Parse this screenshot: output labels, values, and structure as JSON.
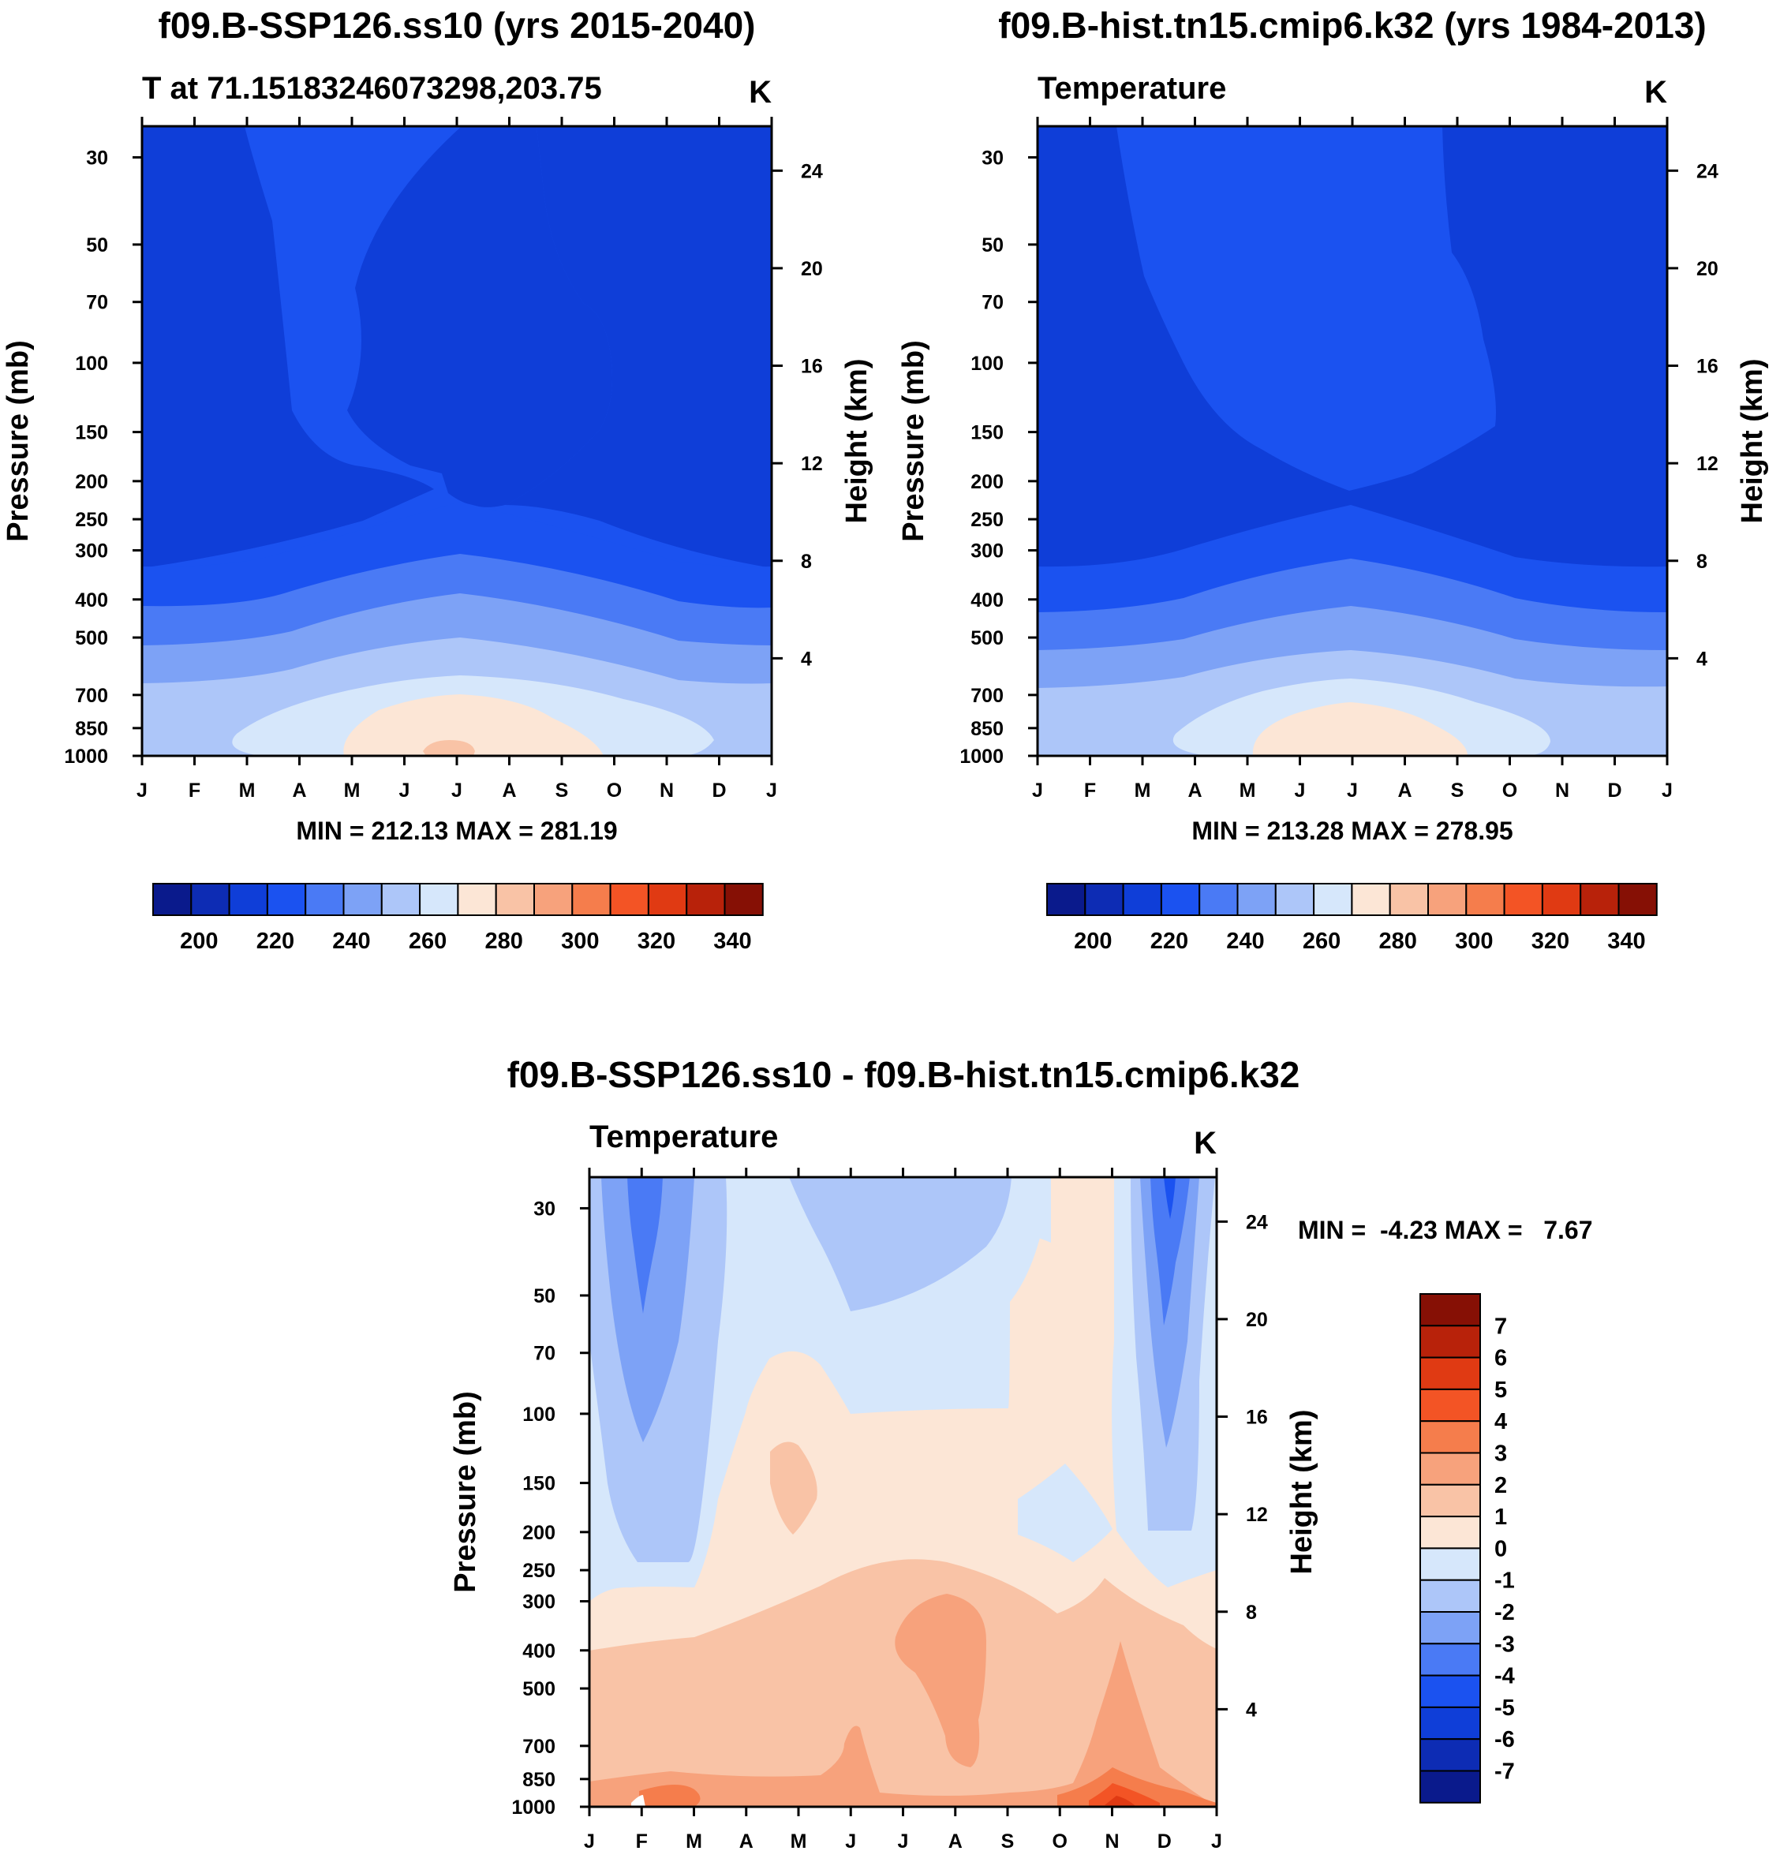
{
  "chart_data": [
    {
      "type": "contour",
      "title": "f09.B-SSP126.ss10 (yrs 2015-2040)",
      "subtitle_left": "T at 71.15183246073298,203.75",
      "units": "K",
      "ylabel": "Pressure (mb)",
      "ylabel_right": "Height (km)",
      "x_ticks": [
        "J",
        "F",
        "M",
        "A",
        "M",
        "J",
        "J",
        "A",
        "S",
        "O",
        "N",
        "D",
        "J"
      ],
      "pressure_ticks": [
        30,
        50,
        70,
        100,
        150,
        200,
        250,
        300,
        400,
        500,
        700,
        850,
        1000
      ],
      "height_ticks": [
        24,
        20,
        16,
        12,
        8,
        4
      ],
      "ylim": [
        1000,
        25
      ],
      "summary": "MIN = 212.13 MAX = 281.19",
      "min": 212.13,
      "max": 281.19,
      "colorbar": {
        "labels": [
          "200",
          "220",
          "240",
          "260",
          "280",
          "300",
          "320",
          "340"
        ],
        "levels": [
          190,
          200,
          210,
          220,
          230,
          240,
          250,
          260,
          270,
          280,
          290,
          300,
          310,
          320,
          330,
          340,
          350
        ],
        "colors": [
          "#0a1a8c",
          "#0d2cb4",
          "#0f3ed8",
          "#1b52f0",
          "#4a7af5",
          "#7da2f6",
          "#adc6f9",
          "#d6e7fb",
          "#fce6d6",
          "#f9c3a6",
          "#f7a27c",
          "#f57d4c",
          "#f35425",
          "#e03a13",
          "#b8220a",
          "#861005"
        ]
      }
    },
    {
      "type": "contour",
      "title": "f09.B-hist.tn15.cmip6.k32 (yrs 1984-2013)",
      "subtitle_left": "Temperature",
      "units": "K",
      "ylabel": "Pressure (mb)",
      "ylabel_right": "Height (km)",
      "x_ticks": [
        "J",
        "F",
        "M",
        "A",
        "M",
        "J",
        "J",
        "A",
        "S",
        "O",
        "N",
        "D",
        "J"
      ],
      "pressure_ticks": [
        30,
        50,
        70,
        100,
        150,
        200,
        250,
        300,
        400,
        500,
        700,
        850,
        1000
      ],
      "height_ticks": [
        24,
        20,
        16,
        12,
        8,
        4
      ],
      "ylim": [
        1000,
        25
      ],
      "summary": "MIN = 213.28 MAX = 278.95",
      "min": 213.28,
      "max": 278.95,
      "colorbar": {
        "labels": [
          "200",
          "220",
          "240",
          "260",
          "280",
          "300",
          "320",
          "340"
        ],
        "levels": [
          190,
          200,
          210,
          220,
          230,
          240,
          250,
          260,
          270,
          280,
          290,
          300,
          310,
          320,
          330,
          340,
          350
        ],
        "colors": [
          "#0a1a8c",
          "#0d2cb4",
          "#0f3ed8",
          "#1b52f0",
          "#4a7af5",
          "#7da2f6",
          "#adc6f9",
          "#d6e7fb",
          "#fce6d6",
          "#f9c3a6",
          "#f7a27c",
          "#f57d4c",
          "#f35425",
          "#e03a13",
          "#b8220a",
          "#861005"
        ]
      }
    },
    {
      "type": "contour",
      "title": "f09.B-SSP126.ss10 - f09.B-hist.tn15.cmip6.k32",
      "subtitle_left": "Temperature",
      "units": "K",
      "ylabel": "Pressure (mb)",
      "ylabel_right": "Height (km)",
      "x_ticks": [
        "J",
        "F",
        "M",
        "A",
        "M",
        "J",
        "J",
        "A",
        "S",
        "O",
        "N",
        "D",
        "J"
      ],
      "pressure_ticks": [
        30,
        50,
        70,
        100,
        150,
        200,
        250,
        300,
        400,
        500,
        700,
        850,
        1000
      ],
      "height_ticks": [
        24,
        20,
        16,
        12,
        8,
        4
      ],
      "ylim": [
        1000,
        25
      ],
      "summary": "MIN =  -4.23 MAX =   7.67",
      "min": -4.23,
      "max": 7.67,
      "colorbar": {
        "labels": [
          "7",
          "6",
          "5",
          "4",
          "3",
          "2",
          "1",
          "0",
          "-1",
          "-2",
          "-3",
          "-4",
          "-5",
          "-6",
          "-7"
        ],
        "colors": [
          "#861005",
          "#b8220a",
          "#e03a13",
          "#f35425",
          "#f57d4c",
          "#f7a27c",
          "#f9c3a6",
          "#fce6d6",
          "#d6e7fb",
          "#adc6f9",
          "#7da2f6",
          "#4a7af5",
          "#1b52f0",
          "#0f3ed8",
          "#0d2cb4",
          "#0a1a8c"
        ]
      }
    }
  ]
}
